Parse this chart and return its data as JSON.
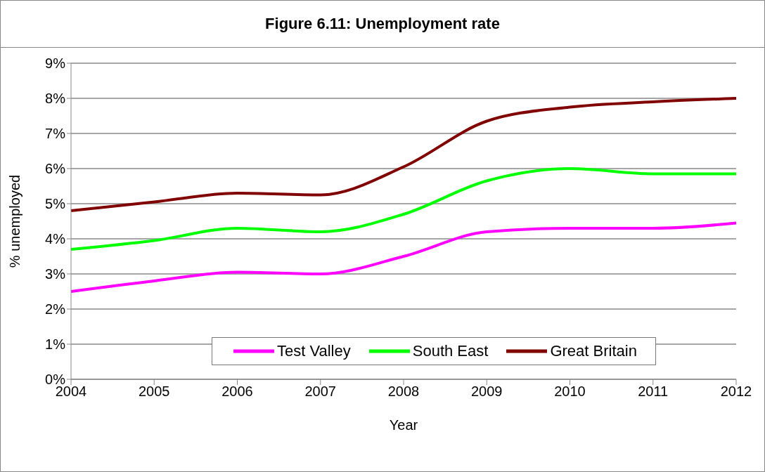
{
  "chart_data": {
    "type": "line",
    "title": "Figure 6.11: Unemployment rate",
    "xlabel": "Year",
    "ylabel": "% unemployed",
    "categories": [
      "2004",
      "2005",
      "2006",
      "2007",
      "2008",
      "2009",
      "2010",
      "2011",
      "2012"
    ],
    "series": [
      {
        "name": "Test Valley",
        "color": "#ff00ff",
        "values": [
          2.5,
          2.8,
          3.05,
          3.0,
          3.5,
          4.2,
          4.3,
          4.3,
          4.45
        ]
      },
      {
        "name": "South East",
        "color": "#00ff00",
        "values": [
          3.7,
          3.95,
          4.3,
          4.2,
          4.7,
          5.65,
          6.0,
          5.85,
          5.85
        ]
      },
      {
        "name": "Great Britain",
        "color": "#800000",
        "values": [
          4.8,
          5.05,
          5.3,
          5.25,
          6.05,
          7.35,
          7.75,
          7.9,
          8.0
        ]
      }
    ],
    "ylim": [
      0,
      9
    ],
    "yticks": [
      {
        "value": 0,
        "label": "0%"
      },
      {
        "value": 1,
        "label": "1%"
      },
      {
        "value": 2,
        "label": "2%"
      },
      {
        "value": 3,
        "label": "3%"
      },
      {
        "value": 4,
        "label": "4%"
      },
      {
        "value": 5,
        "label": "5%"
      },
      {
        "value": 6,
        "label": "6%"
      },
      {
        "value": 7,
        "label": "7%"
      },
      {
        "value": 8,
        "label": "8%"
      },
      {
        "value": 9,
        "label": "9%"
      }
    ],
    "grid": "y",
    "legend": "bottom",
    "marker": "none",
    "line_style": "solid"
  }
}
